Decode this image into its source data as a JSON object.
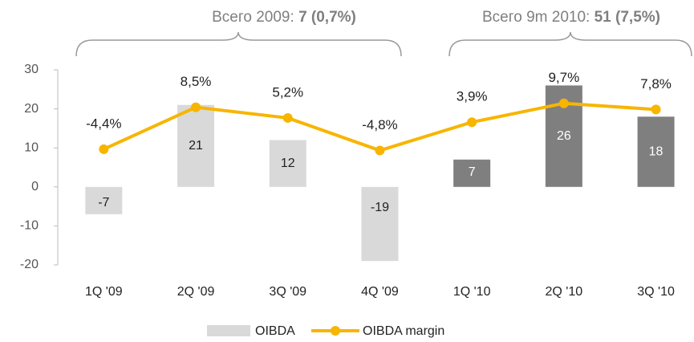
{
  "chart_data": {
    "type": "bar_line",
    "annotations": [
      {
        "text": "Всего 2009: ",
        "bold": "7 (0,7%)"
      },
      {
        "text": "Всего 9m 2010: ",
        "bold": "51 (7,5%)"
      }
    ],
    "categories": [
      "1Q '09",
      "2Q '09",
      "3Q '09",
      "4Q '09",
      "1Q '10",
      "2Q '10",
      "3Q '10"
    ],
    "series": [
      {
        "name": "OIBDA",
        "type": "bar",
        "color": "#d9d9d9",
        "colors": [
          "#d9d9d9",
          "#d9d9d9",
          "#d9d9d9",
          "#d9d9d9",
          "#7f7f7f",
          "#7f7f7f",
          "#7f7f7f"
        ],
        "values": [
          -7,
          21,
          12,
          -19,
          7,
          26,
          18
        ]
      },
      {
        "name": "OIBDA margin",
        "type": "line",
        "axis": "y2",
        "color": "#f7b500",
        "values": [
          -4.4,
          8.5,
          5.2,
          -4.8,
          3.9,
          9.7,
          7.8
        ],
        "value_labels": [
          "-4,4%",
          "8,5%",
          "5,2%",
          "-4,8%",
          "3,9%",
          "9,7%",
          "7,8%"
        ]
      }
    ],
    "ylim": [
      -20,
      30
    ],
    "yticks": [
      -20,
      -10,
      0,
      10,
      20,
      30
    ],
    "y2lim": [
      -40,
      20
    ]
  }
}
